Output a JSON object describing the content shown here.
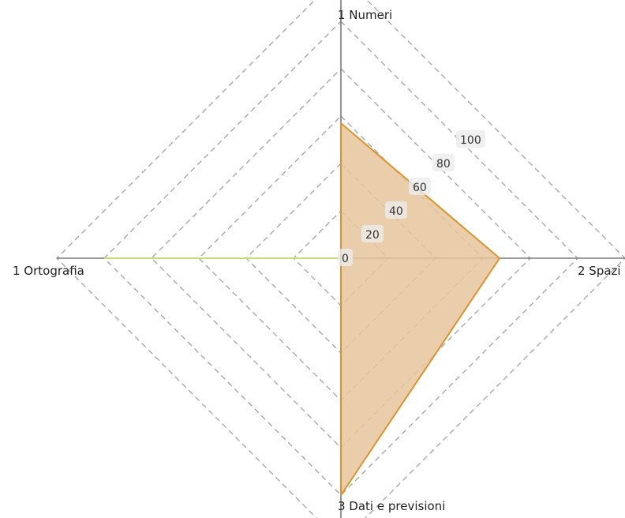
{
  "chart_data": {
    "type": "radar",
    "axes": [
      "1 Numeri",
      "2 Spazi",
      "3 Dati e previsioni",
      "1 Ortografia"
    ],
    "radial_ticks": [
      0,
      20,
      40,
      60,
      80,
      100
    ],
    "radial_range": [
      0,
      100
    ],
    "grid_levels": [
      20,
      40,
      60,
      80,
      100,
      120
    ],
    "series": [
      {
        "values": [
          null,
          null,
          null,
          100
        ],
        "color": "#c8dc78",
        "fill": "#e9f2d2"
      },
      {
        "values": [
          57,
          67,
          100,
          null
        ],
        "color": "#e0922a",
        "fill": "#e6c69c"
      }
    ],
    "grid": true,
    "legend": false
  },
  "colors": {
    "axis": "#7a7a7a",
    "grid": "#a8a8a8",
    "tick_box": "#ececec"
  }
}
